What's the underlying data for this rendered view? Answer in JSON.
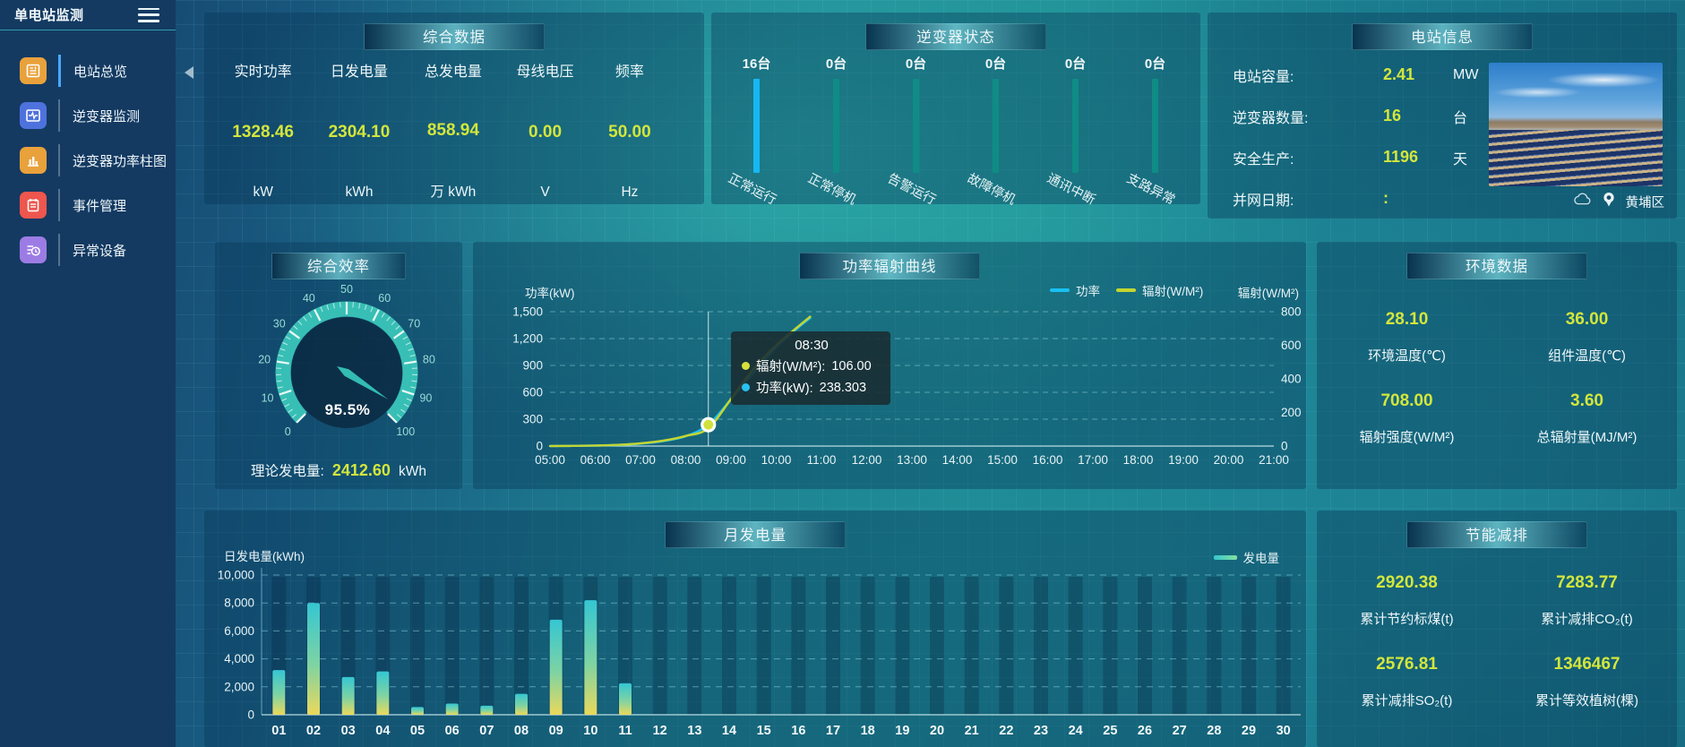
{
  "app": {
    "title": "单电站监测"
  },
  "sidebar": {
    "items": [
      {
        "label": "电站总览",
        "icon": "station-overview-icon",
        "color": "#e9a13b",
        "active": true
      },
      {
        "label": "逆变器监测",
        "icon": "inverter-monitor-icon",
        "color": "#4e72dd",
        "active": false
      },
      {
        "label": "逆变器功率柱图",
        "icon": "power-bars-icon",
        "color": "#e9a13b",
        "active": false
      },
      {
        "label": "事件管理",
        "icon": "event-manage-icon",
        "color": "#ee564e",
        "active": false
      },
      {
        "label": "异常设备",
        "icon": "abnormal-device-icon",
        "color": "#9c7ce4",
        "active": false
      }
    ]
  },
  "summary": {
    "title": "综合数据",
    "metrics": [
      {
        "label": "实时功率",
        "value": "1328.46",
        "unit": "kW"
      },
      {
        "label": "日发电量",
        "value": "2304.10",
        "unit": "kWh"
      },
      {
        "label": "总发电量",
        "value": "858.94",
        "unit": "万 kWh"
      },
      {
        "label": "母线电压",
        "value": "0.00",
        "unit": "V"
      },
      {
        "label": "频率",
        "value": "50.00",
        "unit": "Hz"
      }
    ]
  },
  "inverter_status": {
    "title": "逆变器状态",
    "bars": [
      {
        "count": "16台",
        "label": "正常运行",
        "color": "#16b8f2"
      },
      {
        "count": "0台",
        "label": "正常停机",
        "color": "#0f8c85"
      },
      {
        "count": "0台",
        "label": "告警运行",
        "color": "#0f8c85"
      },
      {
        "count": "0台",
        "label": "故障停机",
        "color": "#0f8c85"
      },
      {
        "count": "0台",
        "label": "通讯中断",
        "color": "#0f8c85"
      },
      {
        "count": "0台",
        "label": "支路异常",
        "color": "#0f8c85"
      }
    ]
  },
  "station_info": {
    "title": "电站信息",
    "rows": [
      {
        "label": "电站容量:",
        "value": "2.41",
        "unit": "MW"
      },
      {
        "label": "逆变器数量:",
        "value": "16",
        "unit": "台"
      },
      {
        "label": "安全生产:",
        "value": "1196",
        "unit": "天"
      },
      {
        "label": "并网日期:",
        "value": ":",
        "unit": ""
      }
    ],
    "location": "黄埔区"
  },
  "efficiency": {
    "title": "综合效率",
    "display": "95.5%",
    "theory_label": "理论发电量:",
    "theory_value": "2412.60",
    "theory_unit": "kWh"
  },
  "environment": {
    "title": "环境数据",
    "items": [
      {
        "value": "28.10",
        "label": "环境温度(℃)"
      },
      {
        "value": "36.00",
        "label": "组件温度(℃)"
      },
      {
        "value": "708.00",
        "label": "辐射强度(W/M²)"
      },
      {
        "value": "3.60",
        "label": "总辐射量(MJ/M²)"
      }
    ]
  },
  "saving": {
    "title": "节能减排",
    "items": [
      {
        "value": "2920.38",
        "label": "累计节约标煤(t)"
      },
      {
        "value": "7283.77",
        "label": "累计减排CO₂(t)"
      },
      {
        "value": "2576.81",
        "label": "累计减排SO₂(t)"
      },
      {
        "value": "1346467",
        "label": "累计等效植树(棵)"
      }
    ]
  },
  "power_chart": {
    "title": "功率辐射曲线",
    "left_axis_label": "功率(kW)",
    "right_axis_label": "辐射(W/M²)",
    "legend": [
      {
        "name": "功率",
        "color": "#19c0f2"
      },
      {
        "name": "辐射(W/M²)",
        "color": "#c3d531"
      }
    ],
    "tooltip": {
      "time": "08:30",
      "rows": [
        {
          "label": "辐射(W/M²):",
          "value": "106.00",
          "color": "#d6e23a"
        },
        {
          "label": "功率(kW):",
          "value": "238.303",
          "color": "#29c2f2"
        }
      ]
    }
  },
  "monthly_chart": {
    "title": "月发电量",
    "y_axis_label": "日发电量(kWh)",
    "legend": "发电量"
  },
  "chart_data": [
    {
      "type": "line",
      "title": "功率辐射曲线",
      "x": [
        "05:00",
        "05:30",
        "06:00",
        "06:30",
        "07:00",
        "07:30",
        "08:00",
        "08:30",
        "09:00",
        "09:30",
        "10:00",
        "10:30",
        "10:45"
      ],
      "series": [
        {
          "name": "功率",
          "axis": "left",
          "unit": "kW",
          "color": "#1fc0f4",
          "values": [
            0,
            2,
            5,
            12,
            28,
            55,
            110,
            238.303,
            520,
            820,
            1100,
            1330,
            1430
          ]
        },
        {
          "name": "辐射",
          "axis": "right",
          "unit": "W/M²",
          "color": "#c3d531",
          "values": [
            0,
            1,
            3,
            7,
            16,
            32,
            60,
            106,
            280,
            460,
            600,
            715,
            770
          ]
        }
      ],
      "x_ticks": [
        "05:00",
        "06:00",
        "07:00",
        "08:00",
        "09:00",
        "10:00",
        "11:00",
        "12:00",
        "13:00",
        "14:00",
        "15:00",
        "16:00",
        "17:00",
        "18:00",
        "19:00",
        "20:00",
        "21:00"
      ],
      "left_ylim": [
        0,
        1500
      ],
      "left_ticks": [
        0,
        300,
        600,
        900,
        1200,
        1500
      ],
      "right_ylim": [
        0,
        800
      ],
      "right_ticks": [
        0,
        200,
        400,
        600,
        800
      ],
      "highlight": {
        "x": "08:30",
        "series": "功率",
        "value": 238.303
      },
      "grid": "dashed-horizontal",
      "legend_position": "top-right"
    },
    {
      "type": "bar",
      "title": "月发电量",
      "categories": [
        "01",
        "02",
        "03",
        "04",
        "05",
        "06",
        "07",
        "08",
        "09",
        "10",
        "11",
        "12",
        "13",
        "14",
        "15",
        "16",
        "17",
        "18",
        "19",
        "20",
        "21",
        "22",
        "23",
        "24",
        "25",
        "26",
        "27",
        "28",
        "29",
        "30"
      ],
      "values": [
        3200,
        8000,
        2700,
        3100,
        550,
        800,
        650,
        1500,
        6800,
        8200,
        2250,
        0,
        0,
        0,
        0,
        0,
        0,
        0,
        0,
        0,
        0,
        0,
        0,
        0,
        0,
        0,
        0,
        0,
        0,
        0
      ],
      "ylabel": "日发电量(kWh)",
      "ylim": [
        0,
        10000
      ],
      "y_ticks": [
        0,
        2000,
        4000,
        6000,
        8000,
        10000
      ],
      "legend": [
        "发电量"
      ],
      "bar_gradient": [
        "#35c6d2",
        "#ead95c"
      ],
      "grid": "dashed-horizontal"
    },
    {
      "type": "gauge",
      "title": "综合效率",
      "value": 95.5,
      "min": 0,
      "max": 100,
      "unit": "%",
      "tick_labels": [
        "0",
        "10",
        "20",
        "30",
        "40",
        "50",
        "60",
        "70",
        "80",
        "90",
        "100"
      ]
    }
  ]
}
